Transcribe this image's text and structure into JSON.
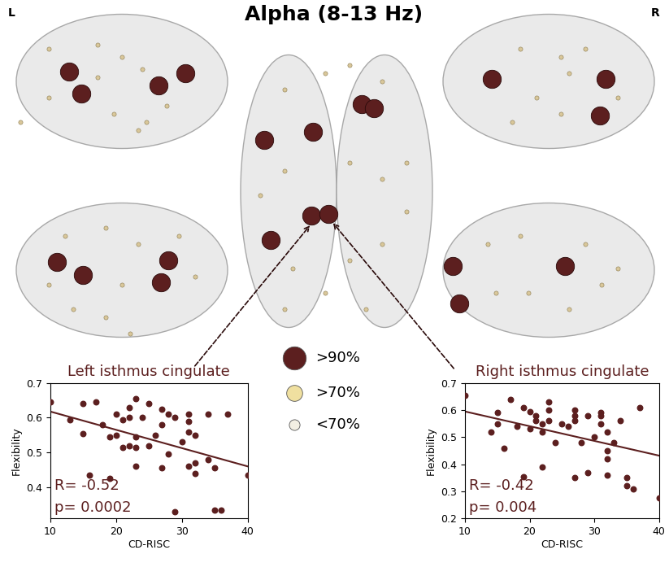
{
  "brain_panel": {
    "title": "Alpha (8-13 Hz)",
    "hemisphere_labels": [
      "L",
      "R"
    ],
    "node_size_legend": [
      ">90%",
      ">70%",
      "<70%"
    ]
  },
  "chart_data": [
    {
      "type": "scatter",
      "title": "Left isthmus cingulate",
      "x_label": "CD-RISC",
      "y_label": "Flexibility",
      "color": "#5c1f1f",
      "x": [
        10,
        13,
        15,
        15,
        16,
        17,
        18,
        19,
        19,
        20,
        20,
        21,
        21,
        22,
        22,
        22,
        23,
        23,
        23,
        23,
        24,
        25,
        25,
        26,
        27,
        27,
        27,
        28,
        28,
        29,
        29,
        30,
        31,
        31,
        31,
        31,
        32,
        32,
        32,
        34,
        34,
        35,
        35,
        36,
        37,
        40
      ],
      "values": [
        0.645,
        0.595,
        0.64,
        0.555,
        0.435,
        0.645,
        0.58,
        0.545,
        0.425,
        0.61,
        0.55,
        0.595,
        0.515,
        0.63,
        0.52,
        0.6,
        0.655,
        0.545,
        0.515,
        0.46,
        0.6,
        0.64,
        0.52,
        0.55,
        0.625,
        0.58,
        0.455,
        0.495,
        0.61,
        0.33,
        0.6,
        0.53,
        0.61,
        0.59,
        0.56,
        0.46,
        0.47,
        0.44,
        0.55,
        0.61,
        0.48,
        0.455,
        0.335,
        0.335,
        0.61,
        0.435
      ],
      "fit_x": [
        10,
        40
      ],
      "fit_y": [
        0.618,
        0.46
      ],
      "annotations": [
        "R= -0.52",
        "p= 0.0002"
      ],
      "xlim": [
        10,
        40
      ],
      "xticks": [
        10,
        20,
        30,
        40
      ],
      "ylim": [
        0.31,
        0.7
      ],
      "yticks": [
        0.4,
        0.5,
        0.6,
        0.7
      ]
    },
    {
      "type": "scatter",
      "title": "Right isthmus cingulate",
      "x_label": "CD-RISC",
      "y_label": "Flexibility",
      "color": "#5c1f1f",
      "x": [
        10,
        14,
        15,
        15,
        16,
        17,
        18,
        19,
        19,
        20,
        20,
        21,
        21,
        22,
        22,
        22,
        23,
        23,
        23,
        24,
        25,
        26,
        27,
        27,
        27,
        27,
        28,
        29,
        29,
        30,
        31,
        31,
        31,
        32,
        32,
        32,
        32,
        33,
        34,
        35,
        35,
        36,
        37,
        40
      ],
      "values": [
        0.655,
        0.52,
        0.55,
        0.59,
        0.46,
        0.64,
        0.54,
        0.61,
        0.355,
        0.595,
        0.53,
        0.58,
        0.56,
        0.55,
        0.52,
        0.39,
        0.63,
        0.6,
        0.56,
        0.48,
        0.55,
        0.54,
        0.6,
        0.58,
        0.56,
        0.35,
        0.48,
        0.58,
        0.37,
        0.5,
        0.59,
        0.58,
        0.55,
        0.52,
        0.45,
        0.42,
        0.36,
        0.48,
        0.56,
        0.35,
        0.32,
        0.31,
        0.61,
        0.275
      ],
      "fit_x": [
        10,
        40
      ],
      "fit_y": [
        0.595,
        0.432
      ],
      "annotations": [
        "R= -0.42",
        "p= 0.004"
      ],
      "xlim": [
        10,
        40
      ],
      "xticks": [
        10,
        20,
        30,
        40
      ],
      "ylim": [
        0.2,
        0.7
      ],
      "yticks": [
        0.2,
        0.3,
        0.4,
        0.5,
        0.6,
        0.7
      ]
    }
  ]
}
